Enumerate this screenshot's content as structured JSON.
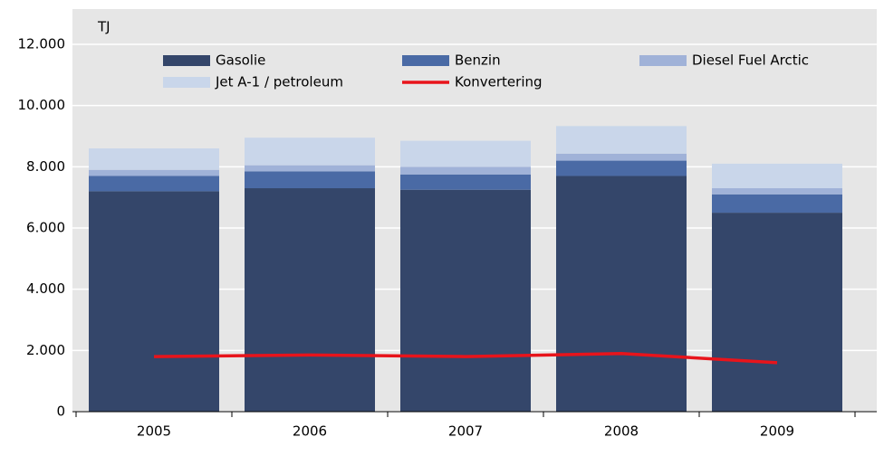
{
  "chart_data": {
    "type": "bar",
    "stacked": true,
    "y_label": "TJ",
    "categories": [
      "2005",
      "2006",
      "2007",
      "2008",
      "2009"
    ],
    "series": [
      {
        "name": "Gasolie",
        "color": "#34466a",
        "values": [
          7200,
          7300,
          7250,
          7700,
          6500
        ]
      },
      {
        "name": "Benzin",
        "color": "#4a6aa5",
        "values": [
          500,
          550,
          500,
          500,
          600
        ]
      },
      {
        "name": "Diesel Fuel Arctic",
        "color": "#a0b2d8",
        "values": [
          200,
          200,
          250,
          230,
          200
        ]
      },
      {
        "name": "Jet A-1 / petroleum",
        "color": "#c9d6ea",
        "values": [
          700,
          900,
          850,
          900,
          800
        ]
      },
      {
        "name": "Konvertering",
        "color": "#e8141b",
        "type": "line",
        "values": [
          1800,
          1850,
          1800,
          1900,
          1600
        ]
      }
    ],
    "ylim": [
      0,
      12000
    ],
    "yticks": [
      0,
      {
        "value": 2000,
        "label": "2.000"
      },
      {
        "value": 4000,
        "label": "4.000"
      },
      {
        "value": 6000,
        "label": "6.000"
      },
      {
        "value": 8000,
        "label": "8.000"
      },
      {
        "value": 10000,
        "label": "10.000"
      },
      {
        "value": 12000,
        "label": "12.000"
      }
    ],
    "grid": true,
    "legend": "top"
  }
}
